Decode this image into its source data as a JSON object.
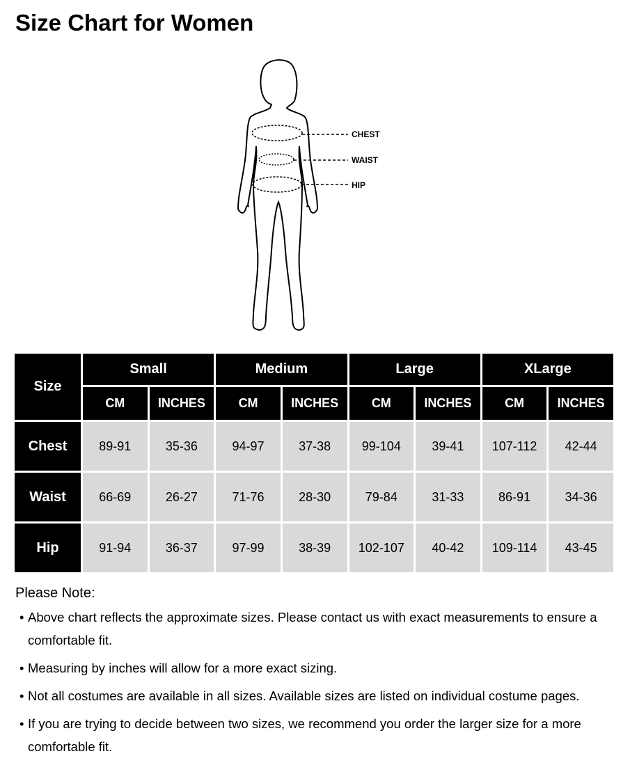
{
  "title": "Size Chart for Women",
  "figure": {
    "labels": [
      "CHEST",
      "WAIST",
      "HIP"
    ]
  },
  "table": {
    "corner": "Size",
    "groups": [
      "Small",
      "Medium",
      "Large",
      "XLarge"
    ],
    "units": [
      "CM",
      "INCHES"
    ],
    "rows": [
      {
        "label": "Chest",
        "values": [
          "89-91",
          "35-36",
          "94-97",
          "37-38",
          "99-104",
          "39-41",
          "107-112",
          "42-44"
        ]
      },
      {
        "label": "Waist",
        "values": [
          "66-69",
          "26-27",
          "71-76",
          "28-30",
          "79-84",
          "31-33",
          "86-91",
          "34-36"
        ]
      },
      {
        "label": "Hip",
        "values": [
          "91-94",
          "36-37",
          "97-99",
          "38-39",
          "102-107",
          "40-42",
          "109-114",
          "43-45"
        ]
      }
    ]
  },
  "notes": {
    "title": "Please Note:",
    "items": [
      "Above chart reflects the approximate sizes. Please contact us with exact measurements to ensure a comfortable fit.",
      "Measuring by inches will allow for a more exact sizing.",
      "Not all costumes are available in all sizes. Available sizes are listed on individual costume pages.",
      "If you are trying to decide between two sizes, we recommend you order the larger size for a more comfortable fit."
    ]
  },
  "colors": {
    "header_bg": "#000000",
    "cell_bg": "#d9d9d9"
  }
}
